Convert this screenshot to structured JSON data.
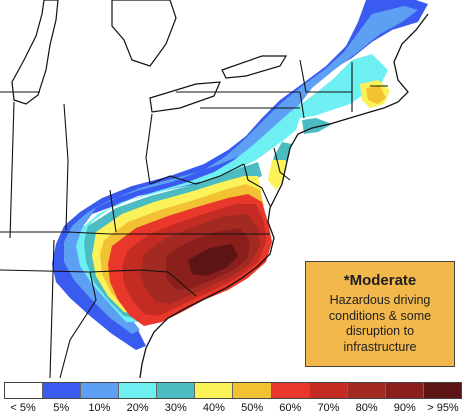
{
  "callout": {
    "title": "*Moderate",
    "body": "Hazardous driving conditions & some disruption to infrastructure",
    "background": "#f2b84b"
  },
  "legend": [
    {
      "label": "< 5%",
      "color": "#ffffff"
    },
    {
      "label": "5%",
      "color": "#3a5bf0"
    },
    {
      "label": "10%",
      "color": "#5d9ff2"
    },
    {
      "label": "20%",
      "color": "#6ef0f2"
    },
    {
      "label": "30%",
      "color": "#4bbdc2"
    },
    {
      "label": "40%",
      "color": "#fbf25a"
    },
    {
      "label": "50%",
      "color": "#f2c233"
    },
    {
      "label": "60%",
      "color": "#e9382b"
    },
    {
      "label": "70%",
      "color": "#c42b22"
    },
    {
      "label": "80%",
      "color": "#a32a23"
    },
    {
      "label": "90%",
      "color": "#8a1f1c"
    },
    {
      "label": "> 95%",
      "color": "#5c1414"
    }
  ]
}
